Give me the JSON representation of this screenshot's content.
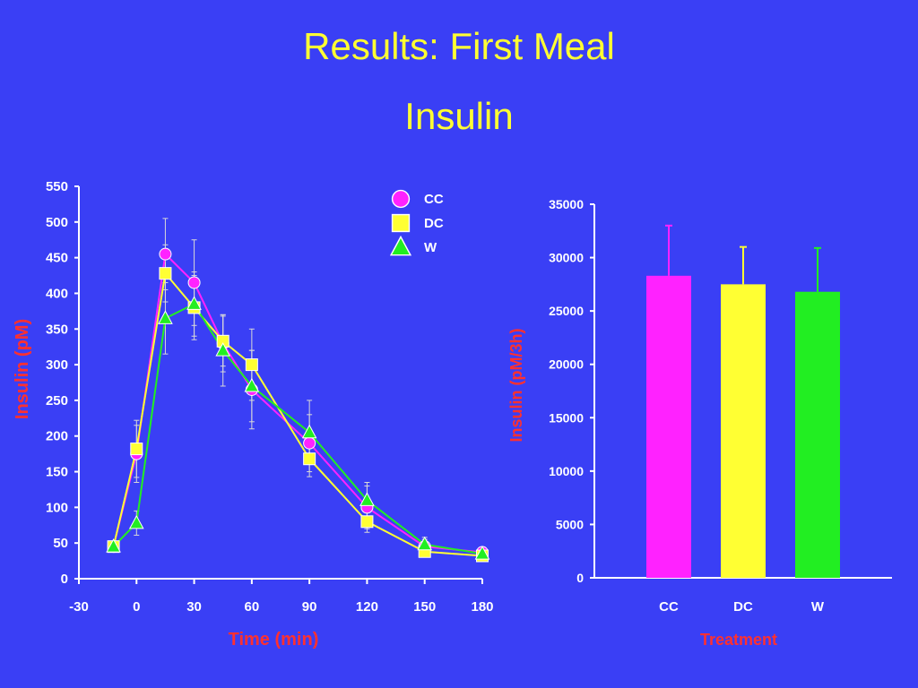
{
  "slide": {
    "title": "Results: First Meal",
    "subtitle": "Insulin"
  },
  "colors": {
    "background": "#3a3ff5",
    "title": "#ffff33",
    "axis_label": "#ff3030",
    "CC": "#ff22ff",
    "DC": "#ffff33",
    "W": "#22ee22"
  },
  "chart_data": [
    {
      "type": "line",
      "xlabel": "Time (min)",
      "ylabel": "Insulin (pM)",
      "xlim": [
        -30,
        180
      ],
      "ylim": [
        0,
        550
      ],
      "xticks": [
        "-30",
        "0",
        "30",
        "60",
        "90",
        "120",
        "150",
        "180"
      ],
      "yticks": [
        "0",
        "50",
        "100",
        "150",
        "200",
        "250",
        "300",
        "350",
        "400",
        "450",
        "500",
        "550"
      ],
      "legend": "top-right",
      "series": [
        {
          "name": "CC",
          "marker": "circle",
          "x": [
            -12,
            0,
            15,
            30,
            45,
            60,
            90,
            120,
            150,
            180
          ],
          "y": [
            45,
            175,
            455,
            415,
            330,
            265,
            190,
            100,
            45,
            37
          ],
          "err": [
            0,
            40,
            50,
            60,
            40,
            55,
            40,
            30,
            10,
            0
          ]
        },
        {
          "name": "DC",
          "marker": "square",
          "x": [
            -12,
            0,
            15,
            30,
            45,
            60,
            90,
            120,
            150,
            180
          ],
          "y": [
            45,
            182,
            428,
            380,
            333,
            300,
            168,
            80,
            38,
            32
          ],
          "err": [
            0,
            40,
            40,
            45,
            35,
            50,
            25,
            15,
            5,
            0
          ]
        },
        {
          "name": "W",
          "marker": "triangle",
          "x": [
            -12,
            0,
            15,
            30,
            45,
            60,
            90,
            120,
            150,
            180
          ],
          "y": [
            45,
            78,
            365,
            385,
            320,
            270,
            205,
            110,
            48,
            35
          ],
          "err": [
            0,
            17,
            50,
            45,
            50,
            50,
            45,
            25,
            10,
            0
          ]
        }
      ]
    },
    {
      "type": "bar",
      "xlabel": "Treatment",
      "ylabel": "Insulin (pM/3h)",
      "ylim": [
        0,
        35000
      ],
      "yticks": [
        "0",
        "5000",
        "10000",
        "15000",
        "20000",
        "25000",
        "30000",
        "35000"
      ],
      "categories": [
        "CC",
        "DC",
        "W"
      ],
      "values": [
        28300,
        27500,
        26800
      ],
      "err": [
        4700,
        3500,
        4100
      ]
    }
  ]
}
